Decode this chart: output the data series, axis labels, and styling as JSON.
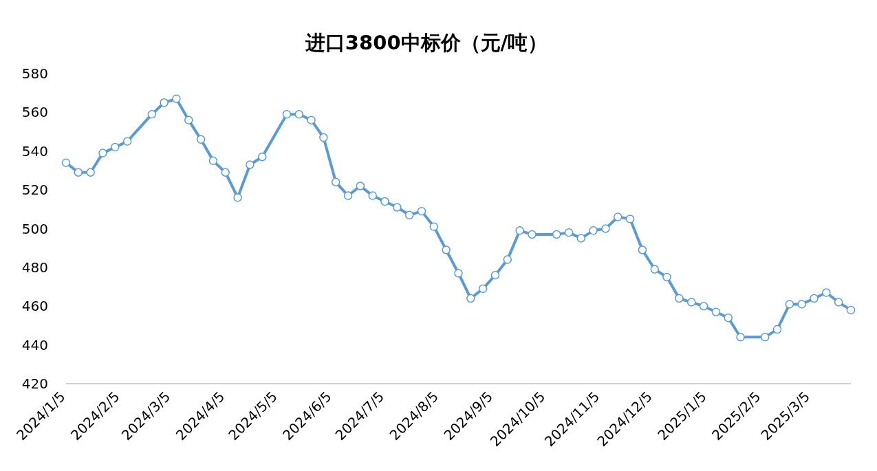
{
  "chart_data": {
    "type": "line",
    "title": "进口3800中标价（元/吨）",
    "x": [
      "2024-01-05",
      "2024-01-12",
      "2024-01-19",
      "2024-01-26",
      "2024-02-02",
      "2024-02-09",
      "2024-02-23",
      "2024-03-01",
      "2024-03-08",
      "2024-03-15",
      "2024-03-22",
      "2024-03-29",
      "2024-04-05",
      "2024-04-12",
      "2024-04-19",
      "2024-04-26",
      "2024-05-10",
      "2024-05-17",
      "2024-05-24",
      "2024-05-31",
      "2024-06-07",
      "2024-06-14",
      "2024-06-21",
      "2024-06-28",
      "2024-07-05",
      "2024-07-12",
      "2024-07-19",
      "2024-07-26",
      "2024-08-02",
      "2024-08-09",
      "2024-08-16",
      "2024-08-23",
      "2024-08-30",
      "2024-09-06",
      "2024-09-13",
      "2024-09-20",
      "2024-09-27",
      "2024-10-11",
      "2024-10-18",
      "2024-10-25",
      "2024-11-01",
      "2024-11-08",
      "2024-11-15",
      "2024-11-22",
      "2024-11-29",
      "2024-12-06",
      "2024-12-13",
      "2024-12-20",
      "2024-12-27",
      "2025-01-03",
      "2025-01-10",
      "2025-01-17",
      "2025-01-24",
      "2025-02-07",
      "2025-02-14",
      "2025-02-21",
      "2025-02-28",
      "2025-03-07",
      "2025-03-14",
      "2025-03-21",
      "2025-03-28"
    ],
    "values": [
      534,
      529,
      529,
      539,
      542,
      545,
      559,
      565,
      567,
      556,
      546,
      535,
      529,
      516,
      533,
      537,
      559,
      559,
      556,
      547,
      524,
      517,
      522,
      517,
      514,
      511,
      507,
      509,
      501,
      489,
      477,
      464,
      469,
      476,
      484,
      499,
      497,
      497,
      498,
      495,
      499,
      500,
      506,
      505,
      489,
      479,
      475,
      464,
      462,
      460,
      457,
      454,
      444,
      444,
      448,
      461,
      461,
      464,
      467,
      462,
      458
    ],
    "color": "#5b9bd5",
    "marker": "circle",
    "xlim": [
      "2024-01-05",
      "2025-03-28"
    ],
    "ylim": [
      420,
      580
    ],
    "xticks": [
      {
        "value": "2024-01-05",
        "label": "2024/1/5"
      },
      {
        "value": "2024-02-05",
        "label": "2024/2/5"
      },
      {
        "value": "2024-03-05",
        "label": "2024/3/5"
      },
      {
        "value": "2024-04-05",
        "label": "2024/4/5"
      },
      {
        "value": "2024-05-05",
        "label": "2024/5/5"
      },
      {
        "value": "2024-06-05",
        "label": "2024/6/5"
      },
      {
        "value": "2024-07-05",
        "label": "2024/7/5"
      },
      {
        "value": "2024-08-05",
        "label": "2024/8/5"
      },
      {
        "value": "2024-09-05",
        "label": "2024/9/5"
      },
      {
        "value": "2024-10-05",
        "label": "2024/10/5"
      },
      {
        "value": "2024-11-05",
        "label": "2024/11/5"
      },
      {
        "value": "2024-12-05",
        "label": "2024/12/5"
      },
      {
        "value": "2025-01-05",
        "label": "2025/1/5"
      },
      {
        "value": "2025-02-05",
        "label": "2025/2/5"
      },
      {
        "value": "2025-03-05",
        "label": "2025/3/5"
      }
    ],
    "yticks": [
      420,
      440,
      460,
      480,
      500,
      520,
      540,
      560,
      580
    ]
  }
}
